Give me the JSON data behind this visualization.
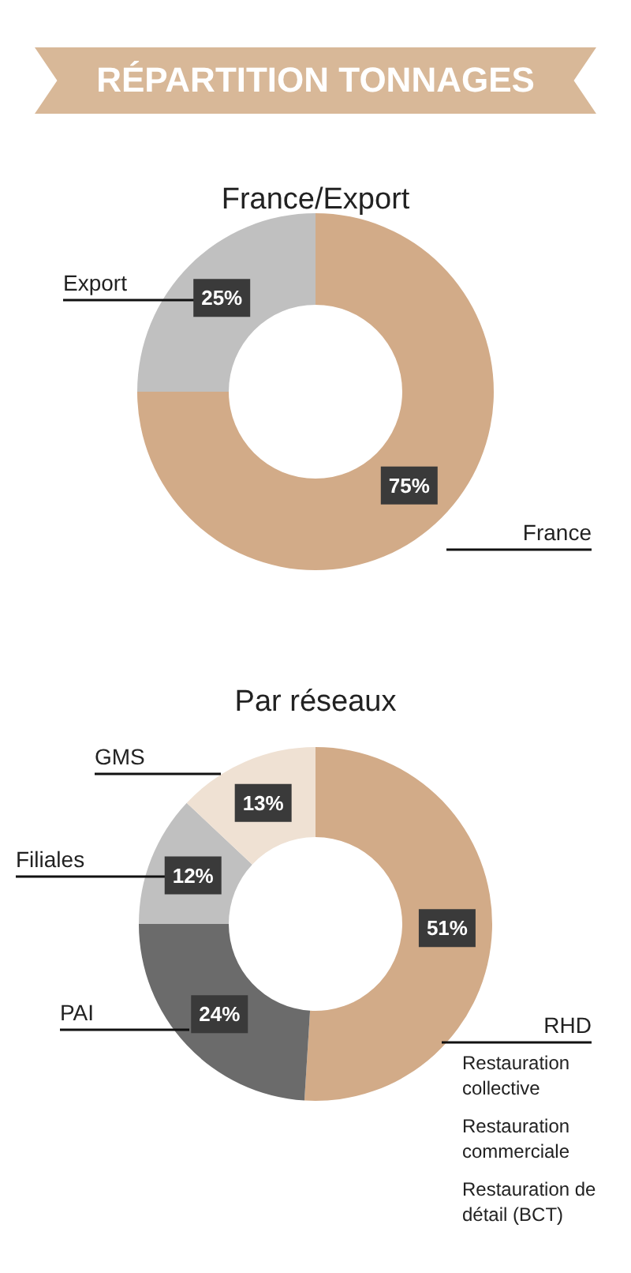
{
  "chart_data": [
    {
      "type": "donut",
      "title": "RÉPARTITION TONNAGES",
      "subtitle": "France/Export",
      "categories": [
        "France",
        "Export"
      ],
      "values": [
        75,
        25
      ],
      "colors": [
        "#d2ab88",
        "#c0c0c0"
      ],
      "value_labels": [
        "75%",
        "25%"
      ]
    },
    {
      "type": "donut",
      "title": "Par réseaux",
      "categories": [
        "RHD",
        "PAI",
        "Filiales",
        "GMS"
      ],
      "values": [
        51,
        24,
        12,
        13
      ],
      "colors": [
        "#d2ab88",
        "#6b6b6b",
        "#c0c0c0",
        "#efe1d3"
      ],
      "value_labels": [
        "51%",
        "24%",
        "12%",
        "13%"
      ],
      "annotations": [
        "Restauration collective",
        "Restauration commerciale",
        "Restauration de détail (BCT)"
      ]
    }
  ]
}
